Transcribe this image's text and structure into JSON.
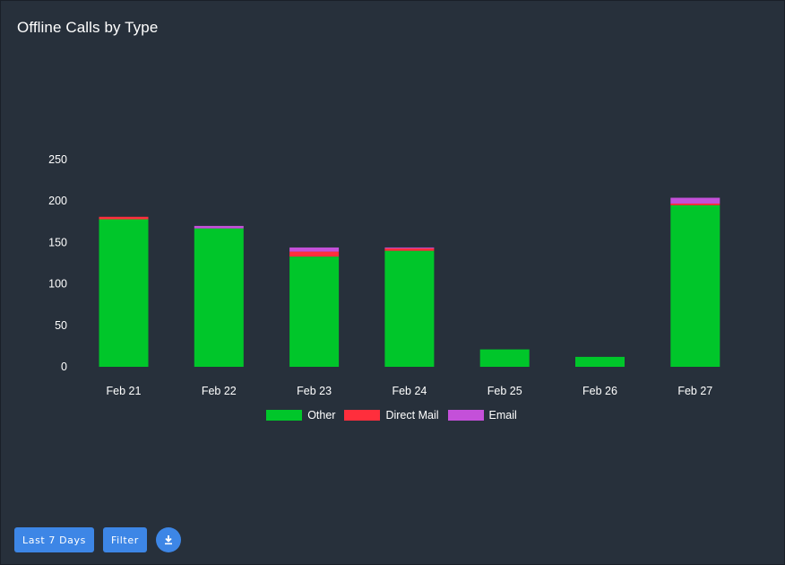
{
  "header": {
    "title": "Offline Calls by Type"
  },
  "controls": {
    "range_label": "Last 7 Days",
    "filter_label": "Filter",
    "download_icon": "download-icon"
  },
  "colors": {
    "Other": "#00c62a",
    "Direct Mail": "#ff2e3c",
    "Email": "#c450d9",
    "background": "#27303b",
    "button": "#3d86e6"
  },
  "chart_data": {
    "type": "bar",
    "stacked": true,
    "categories": [
      "Feb 21",
      "Feb 22",
      "Feb 23",
      "Feb 24",
      "Feb 25",
      "Feb 26",
      "Feb 27"
    ],
    "series": [
      {
        "name": "Other",
        "values": [
          178,
          167,
          133,
          140,
          21,
          12,
          195
        ]
      },
      {
        "name": "Direct Mail",
        "values": [
          3,
          0,
          6,
          3,
          0,
          0,
          2
        ]
      },
      {
        "name": "Email",
        "values": [
          0,
          3,
          5,
          1,
          0,
          0,
          7
        ]
      }
    ],
    "ylim": [
      0,
      250
    ],
    "yticks": [
      0,
      50,
      100,
      150,
      200,
      250
    ],
    "grid": false,
    "legend": "bottom"
  }
}
